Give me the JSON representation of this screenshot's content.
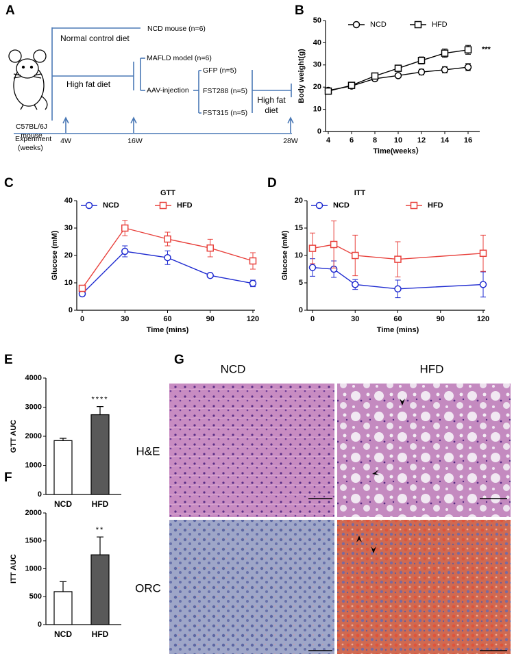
{
  "panel_labels": [
    "A",
    "B",
    "C",
    "D",
    "E",
    "F",
    "G"
  ],
  "diagram": {
    "strain": "C57BL/6J",
    "strain_unit": "mouse",
    "ncd_group": "NCD mouse (n=6)",
    "ncd_diet": "Normal control diet",
    "hfd_diet": "High fat diet",
    "mafld_group": "MAFLD model (n=6)",
    "aav": "AAV-injection",
    "gfp": "GFP (n=5)",
    "fst288": "FST288 (n=5)",
    "fst315": "FST315 (n=5)",
    "late_diet_1": "High fat",
    "late_diet_2": "diet",
    "experiment": "Experiment",
    "weeks": "(weeks)",
    "timepoints": [
      "4W",
      "16W",
      "28W"
    ]
  },
  "histology": {
    "columns": [
      "NCD",
      "HFD"
    ],
    "rows": [
      "H&E",
      "ORC"
    ]
  },
  "chart_data": [
    {
      "type": "line",
      "xlabel": "Time(weeks）",
      "ylabel": "Body weight(g)",
      "annotation": "***",
      "x": [
        4,
        6,
        8,
        10,
        12,
        14,
        16
      ],
      "xlim": [
        4,
        16
      ],
      "xticks": [
        4,
        6,
        8,
        10,
        12,
        14,
        16
      ],
      "ylim": [
        0,
        50
      ],
      "yticks": [
        0,
        10,
        20,
        30,
        40,
        50
      ],
      "series": [
        {
          "name": "NCD",
          "color": "#000000",
          "marker": "circle",
          "values": [
            18.5,
            20.5,
            23.8,
            25.2,
            26.8,
            27.8,
            29
          ],
          "errors": [
            1,
            1,
            0.7,
            0.8,
            1.3,
            1.4,
            1.6
          ]
        },
        {
          "name": "HFD",
          "color": "#000000",
          "marker": "square",
          "values": [
            18.2,
            20.8,
            25,
            28.5,
            32,
            35.3,
            36.8
          ],
          "errors": [
            0.8,
            0.8,
            0.8,
            1,
            1.6,
            1.9,
            2
          ]
        }
      ]
    },
    {
      "type": "line",
      "title": "GTT",
      "xlabel": "Time (mins)",
      "ylabel": "Glucose (mM)",
      "x": [
        0,
        30,
        60,
        90,
        120
      ],
      "xlim": [
        0,
        120
      ],
      "xticks": [
        0,
        30,
        60,
        90,
        120
      ],
      "ylim": [
        0,
        40
      ],
      "yticks": [
        0,
        10,
        20,
        30,
        40
      ],
      "series": [
        {
          "name": "NCD",
          "color": "#1f2bd0",
          "marker": "circle",
          "values": [
            6,
            21.5,
            19.2,
            12.7,
            9.8
          ],
          "errors": [
            0.8,
            2,
            2.5,
            0.8,
            1.2
          ]
        },
        {
          "name": "HFD",
          "color": "#e8413c",
          "marker": "square",
          "values": [
            8,
            30,
            26,
            22.7,
            18
          ],
          "errors": [
            0.5,
            2.8,
            2.5,
            3.2,
            3
          ]
        }
      ]
    },
    {
      "type": "line",
      "title": "ITT",
      "xlabel": "Time (mins)",
      "ylabel": "Glucose (mM)",
      "x": [
        0,
        15,
        30,
        60,
        120
      ],
      "xlim": [
        0,
        120
      ],
      "xticks": [
        0,
        30,
        60,
        90,
        120
      ],
      "ylim": [
        0,
        20
      ],
      "yticks": [
        0,
        5,
        10,
        15,
        20
      ],
      "series": [
        {
          "name": "NCD",
          "color": "#1f2bd0",
          "marker": "circle",
          "values": [
            7.8,
            7.5,
            4.7,
            3.9,
            4.7
          ],
          "errors": [
            1.6,
            1.5,
            0.9,
            1.6,
            2.3
          ]
        },
        {
          "name": "HFD",
          "color": "#e8413c",
          "marker": "square",
          "values": [
            11.3,
            12,
            10,
            9.3,
            10.4
          ],
          "errors": [
            2.8,
            4.3,
            3.7,
            3.2,
            3.3
          ]
        }
      ]
    },
    {
      "type": "bar",
      "ylabel": "GTT AUC",
      "annotation": "****",
      "categories": [
        "NCD",
        "HFD"
      ],
      "values": [
        1850,
        2740
      ],
      "errors": [
        80,
        280
      ],
      "colors": [
        "#ffffff",
        "#595959"
      ],
      "ylim": [
        0,
        4000
      ],
      "yticks": [
        0,
        1000,
        2000,
        3000,
        4000
      ]
    },
    {
      "type": "bar",
      "ylabel": "ITT  AUC",
      "annotation": "**",
      "categories": [
        "NCD",
        "HFD"
      ],
      "values": [
        590,
        1250
      ],
      "errors": [
        180,
        320
      ],
      "colors": [
        "#ffffff",
        "#595959"
      ],
      "ylim": [
        0,
        2000
      ],
      "yticks": [
        0,
        500,
        1000,
        1500,
        2000
      ]
    }
  ]
}
